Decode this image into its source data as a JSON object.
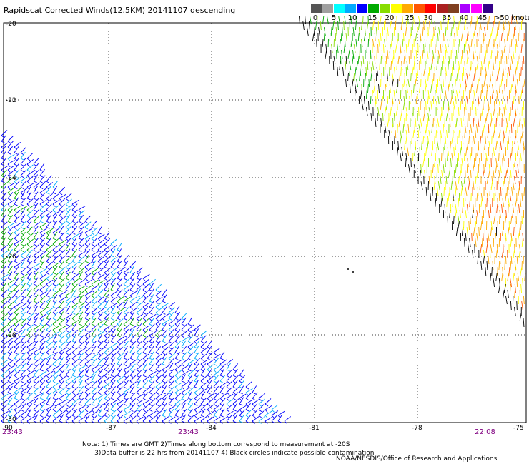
{
  "title": "Rapidscat Corrected Winds(12.5KM) 20141107 descending",
  "legend": {
    "colors": [
      "#555555",
      "#a0a0a0",
      "#00ffff",
      "#00aaff",
      "#0000ff",
      "#00aa00",
      "#88dd00",
      "#ffff00",
      "#ffaa00",
      "#ff5500",
      "#ff0000",
      "#aa2020",
      "#804020",
      "#aa00ff",
      "#ff00ff",
      "#330088"
    ],
    "labels": [
      "0",
      "5",
      "10",
      "15",
      "20",
      "25",
      "30",
      "35",
      "40",
      "45",
      ">50 knots"
    ]
  },
  "axes": {
    "lat_labels": [
      "-20",
      "-22",
      "-24",
      "-26",
      "-28",
      "-30"
    ],
    "lon_labels": [
      "-87",
      "-84",
      "-81",
      "-78",
      "-75"
    ],
    "lon_left_label": "-90"
  },
  "times": [
    "23:43",
    "23:43",
    "22:08"
  ],
  "note_line1": "Note: 1) Times are GMT 2)Times along bottom correspond to measurement at -20S",
  "note_line2": "3)Data buffer is 22 hrs from 20141107 4) Black circles indicate possible contamination",
  "credit": "NOAA/NESDIS/Office of Research and Applications",
  "swaths": [
    {
      "name": "west-swath",
      "speed_class": "low-moderate",
      "colors": [
        "#0000ff",
        "#00aa00",
        "#00aaff"
      ]
    },
    {
      "name": "east-swath",
      "speed_class": "moderate-high",
      "colors": [
        "#88dd00",
        "#ffff00",
        "#ffaa00",
        "#000000"
      ]
    }
  ]
}
